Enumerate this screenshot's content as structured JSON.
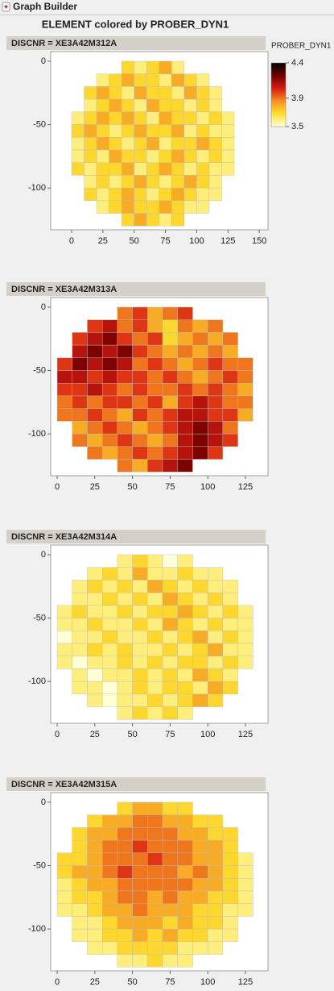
{
  "app_title": "Graph Builder",
  "graph_title": "ELEMENT colored by PROBER_DYN1",
  "color_scale": {
    "title": "PROBER_DYN1",
    "lim": [
      3.5,
      4.4
    ],
    "ticks": [
      4.4,
      3.9,
      3.5
    ],
    "colors": [
      "#ffffd8",
      "#ffe030",
      "#f59020",
      "#d81c10",
      "#700000",
      "#000000"
    ]
  },
  "chart_data": [
    {
      "type": "heatmap",
      "title": "DISCNR = XE3A42M312A",
      "xlim": [
        -16.7,
        157
      ],
      "ylim": [
        -133,
        7.6
      ],
      "xticks": [
        0,
        25,
        50,
        75,
        100,
        125,
        150
      ],
      "yticks": [
        0,
        -50,
        -100
      ],
      "x": [
        5,
        15,
        25,
        35,
        45,
        55,
        65,
        75,
        85,
        95,
        105,
        115,
        125
      ],
      "y": [
        -5,
        -15,
        -25,
        -35,
        -45,
        -55,
        -65,
        -75,
        -85,
        -95,
        -105,
        -115,
        -125
      ],
      "values": [
        [
          null,
          null,
          null,
          null,
          3.7,
          3.6,
          3.7,
          3.8,
          3.6,
          null,
          null,
          null,
          null
        ],
        [
          null,
          null,
          3.6,
          3.7,
          3.8,
          3.7,
          3.7,
          3.6,
          3.8,
          3.7,
          3.6,
          null,
          null
        ],
        [
          null,
          3.7,
          3.8,
          3.7,
          3.6,
          3.8,
          3.7,
          3.7,
          3.6,
          3.8,
          3.7,
          3.6,
          null
        ],
        [
          null,
          3.6,
          3.7,
          3.8,
          3.7,
          3.6,
          3.8,
          3.7,
          3.7,
          3.6,
          3.7,
          3.6,
          null
        ],
        [
          3.6,
          3.7,
          3.8,
          3.7,
          3.8,
          3.7,
          3.6,
          3.8,
          3.7,
          3.7,
          3.6,
          3.7,
          3.6
        ],
        [
          3.7,
          3.8,
          3.7,
          3.6,
          3.7,
          3.8,
          3.7,
          3.7,
          3.8,
          3.6,
          3.7,
          3.6,
          3.6
        ],
        [
          3.6,
          3.7,
          3.8,
          3.7,
          3.6,
          3.7,
          3.8,
          3.6,
          3.7,
          3.7,
          3.8,
          3.7,
          3.6
        ],
        [
          3.6,
          3.7,
          3.6,
          3.8,
          3.7,
          3.7,
          3.6,
          3.7,
          3.8,
          3.7,
          3.6,
          3.7,
          3.6
        ],
        [
          3.7,
          3.6,
          3.7,
          3.7,
          3.8,
          3.6,
          3.7,
          3.8,
          3.7,
          3.6,
          3.7,
          3.6,
          3.6
        ],
        [
          null,
          3.6,
          3.7,
          3.6,
          3.7,
          3.8,
          3.7,
          3.6,
          3.7,
          3.8,
          3.7,
          3.6,
          null
        ],
        [
          null,
          3.7,
          3.6,
          3.7,
          3.8,
          3.7,
          3.6,
          3.7,
          3.8,
          3.7,
          3.6,
          3.6,
          null
        ],
        [
          null,
          null,
          3.6,
          3.7,
          3.8,
          3.7,
          3.7,
          3.8,
          3.7,
          3.6,
          3.6,
          null,
          null
        ],
        [
          null,
          null,
          null,
          null,
          3.7,
          3.8,
          3.7,
          3.6,
          3.7,
          null,
          null,
          null,
          null
        ]
      ]
    },
    {
      "type": "heatmap",
      "title": "DISCNR = XE3A42M313A",
      "xlim": [
        -4.3,
        140
      ],
      "ylim": [
        -133,
        7.6
      ],
      "xticks": [
        0,
        25,
        50,
        75,
        100,
        125
      ],
      "yticks": [
        0,
        -50,
        -100
      ],
      "x": [
        5,
        15,
        25,
        35,
        45,
        55,
        65,
        75,
        85,
        95,
        105,
        115,
        125
      ],
      "y": [
        -5,
        -15,
        -25,
        -35,
        -45,
        -55,
        -65,
        -75,
        -85,
        -95,
        -105,
        -115,
        -125
      ],
      "values": [
        [
          null,
          null,
          null,
          null,
          3.9,
          4.0,
          3.8,
          3.9,
          4.0,
          null,
          null,
          null,
          null
        ],
        [
          null,
          null,
          4.0,
          4.1,
          3.9,
          4.0,
          3.8,
          3.7,
          3.9,
          3.8,
          3.9,
          null,
          null
        ],
        [
          null,
          4.0,
          4.1,
          4.2,
          4.0,
          3.9,
          4.0,
          3.7,
          3.8,
          3.9,
          3.8,
          3.9,
          null
        ],
        [
          null,
          4.1,
          4.2,
          4.1,
          4.2,
          4.0,
          3.9,
          3.8,
          3.9,
          3.8,
          3.9,
          3.8,
          null
        ],
        [
          4.0,
          4.2,
          4.1,
          4.2,
          4.1,
          3.9,
          4.0,
          3.9,
          3.8,
          3.9,
          4.0,
          3.9,
          3.9
        ],
        [
          4.1,
          4.1,
          4.0,
          4.1,
          4.0,
          4.0,
          3.9,
          4.0,
          3.9,
          3.8,
          3.9,
          4.0,
          3.9
        ],
        [
          4.0,
          4.0,
          4.1,
          4.0,
          3.9,
          4.0,
          3.9,
          3.9,
          4.0,
          3.9,
          4.0,
          3.9,
          3.8
        ],
        [
          3.9,
          4.0,
          3.9,
          4.0,
          4.0,
          3.9,
          4.0,
          3.8,
          4.0,
          4.1,
          4.0,
          3.9,
          3.9
        ],
        [
          3.9,
          3.9,
          4.0,
          3.9,
          3.8,
          4.0,
          3.9,
          4.0,
          4.1,
          4.1,
          4.0,
          4.0,
          3.8
        ],
        [
          null,
          3.8,
          3.9,
          4.0,
          3.9,
          3.8,
          3.9,
          4.0,
          4.1,
          4.2,
          4.1,
          3.9,
          null
        ],
        [
          null,
          3.9,
          3.8,
          3.9,
          4.0,
          3.9,
          3.8,
          3.9,
          4.1,
          4.2,
          4.1,
          4.0,
          null
        ],
        [
          null,
          null,
          3.9,
          3.8,
          3.9,
          4.0,
          3.9,
          4.0,
          4.1,
          4.2,
          4.0,
          null,
          null
        ],
        [
          null,
          null,
          null,
          null,
          3.9,
          3.8,
          4.0,
          4.1,
          4.2,
          null,
          null,
          null,
          null
        ]
      ]
    },
    {
      "type": "heatmap",
      "title": "DISCNR = XE3A42M314A",
      "xlim": [
        -4.3,
        140
      ],
      "ylim": [
        -133,
        7.6
      ],
      "xticks": [
        0,
        25,
        50,
        75,
        100,
        125
      ],
      "yticks": [
        0,
        -50,
        -100
      ],
      "x": [
        5,
        15,
        25,
        35,
        45,
        55,
        65,
        75,
        85,
        95,
        105,
        115,
        125
      ],
      "y": [
        -5,
        -15,
        -25,
        -35,
        -45,
        -55,
        -65,
        -75,
        -85,
        -95,
        -105,
        -115,
        -125
      ],
      "values": [
        [
          null,
          null,
          null,
          null,
          3.6,
          3.7,
          3.6,
          3.5,
          3.6,
          null,
          null,
          null,
          null
        ],
        [
          null,
          null,
          3.6,
          3.7,
          3.6,
          3.8,
          3.6,
          3.6,
          3.7,
          3.6,
          3.6,
          null,
          null
        ],
        [
          null,
          3.6,
          3.7,
          3.6,
          3.7,
          3.6,
          3.8,
          3.7,
          3.6,
          3.7,
          3.6,
          3.6,
          null
        ],
        [
          null,
          3.6,
          3.6,
          3.7,
          3.6,
          3.7,
          3.6,
          3.8,
          3.7,
          3.6,
          3.7,
          3.6,
          null
        ],
        [
          3.6,
          3.7,
          3.6,
          3.6,
          3.7,
          3.6,
          3.7,
          3.7,
          3.8,
          3.7,
          3.6,
          3.7,
          3.6
        ],
        [
          3.6,
          3.6,
          3.7,
          3.6,
          3.6,
          3.7,
          3.6,
          3.8,
          3.7,
          3.6,
          3.7,
          3.6,
          3.6
        ],
        [
          3.5,
          3.6,
          3.6,
          3.7,
          3.6,
          3.6,
          3.7,
          3.6,
          3.7,
          3.8,
          3.6,
          3.7,
          3.6
        ],
        [
          3.6,
          3.6,
          3.7,
          3.6,
          3.7,
          3.6,
          3.6,
          3.7,
          3.6,
          3.7,
          3.8,
          3.6,
          3.6
        ],
        [
          3.6,
          3.5,
          3.6,
          3.6,
          3.7,
          3.6,
          3.7,
          3.6,
          3.7,
          3.7,
          3.6,
          3.7,
          3.6
        ],
        [
          null,
          3.6,
          3.5,
          3.6,
          3.6,
          3.7,
          3.6,
          3.7,
          3.6,
          3.8,
          3.7,
          3.6,
          null
        ],
        [
          null,
          3.6,
          3.6,
          3.5,
          3.6,
          3.7,
          3.6,
          3.7,
          3.7,
          3.6,
          3.8,
          3.7,
          null
        ],
        [
          null,
          null,
          3.6,
          3.5,
          3.6,
          3.6,
          3.7,
          3.6,
          3.7,
          3.8,
          3.7,
          null,
          null
        ],
        [
          null,
          null,
          null,
          null,
          3.6,
          3.7,
          3.6,
          3.7,
          3.6,
          null,
          null,
          null,
          null
        ]
      ]
    },
    {
      "type": "heatmap",
      "title": "DISCNR = XE3A42M315A",
      "xlim": [
        -4.3,
        140
      ],
      "ylim": [
        -133,
        7.6
      ],
      "xticks": [
        0,
        25,
        50,
        75,
        100,
        125
      ],
      "yticks": [
        0,
        -50,
        -100
      ],
      "x": [
        5,
        15,
        25,
        35,
        45,
        55,
        65,
        75,
        85,
        95,
        105,
        115,
        125
      ],
      "y": [
        -5,
        -15,
        -25,
        -35,
        -45,
        -55,
        -65,
        -75,
        -85,
        -95,
        -105,
        -115,
        -125
      ],
      "values": [
        [
          null,
          null,
          null,
          null,
          3.7,
          3.8,
          3.8,
          3.7,
          3.7,
          null,
          null,
          null,
          null
        ],
        [
          null,
          null,
          3.7,
          3.8,
          3.8,
          3.9,
          3.9,
          3.8,
          3.8,
          3.7,
          3.7,
          null,
          null
        ],
        [
          null,
          3.7,
          3.8,
          3.8,
          3.9,
          3.9,
          3.9,
          3.9,
          3.8,
          3.8,
          3.7,
          3.7,
          null
        ],
        [
          null,
          3.7,
          3.8,
          3.9,
          3.9,
          4.0,
          3.9,
          3.9,
          3.9,
          3.8,
          3.8,
          3.7,
          null
        ],
        [
          3.7,
          3.7,
          3.8,
          3.9,
          3.9,
          3.9,
          4.0,
          3.9,
          3.9,
          3.8,
          3.8,
          3.7,
          3.6
        ],
        [
          3.7,
          3.8,
          3.8,
          3.9,
          4.0,
          3.9,
          3.9,
          3.9,
          3.8,
          3.9,
          3.8,
          3.7,
          3.6
        ],
        [
          3.6,
          3.7,
          3.8,
          3.8,
          3.9,
          3.9,
          3.9,
          3.9,
          3.9,
          3.8,
          3.8,
          3.7,
          3.6
        ],
        [
          3.6,
          3.7,
          3.7,
          3.8,
          3.9,
          3.9,
          3.8,
          3.9,
          3.8,
          3.8,
          3.7,
          3.7,
          3.6
        ],
        [
          3.6,
          3.6,
          3.7,
          3.8,
          3.8,
          3.9,
          3.8,
          3.8,
          3.8,
          3.7,
          3.7,
          3.6,
          3.6
        ],
        [
          null,
          3.6,
          3.6,
          3.7,
          3.8,
          3.8,
          3.8,
          3.7,
          3.8,
          3.7,
          3.7,
          3.6,
          null
        ],
        [
          null,
          3.6,
          3.6,
          3.7,
          3.7,
          3.8,
          3.7,
          3.8,
          3.7,
          3.7,
          3.6,
          3.6,
          null
        ],
        [
          null,
          null,
          3.6,
          3.6,
          3.7,
          3.7,
          3.7,
          3.7,
          3.6,
          3.6,
          3.6,
          null,
          null
        ],
        [
          null,
          null,
          null,
          null,
          3.6,
          3.6,
          3.7,
          3.6,
          3.6,
          null,
          null,
          null,
          null
        ]
      ]
    }
  ]
}
